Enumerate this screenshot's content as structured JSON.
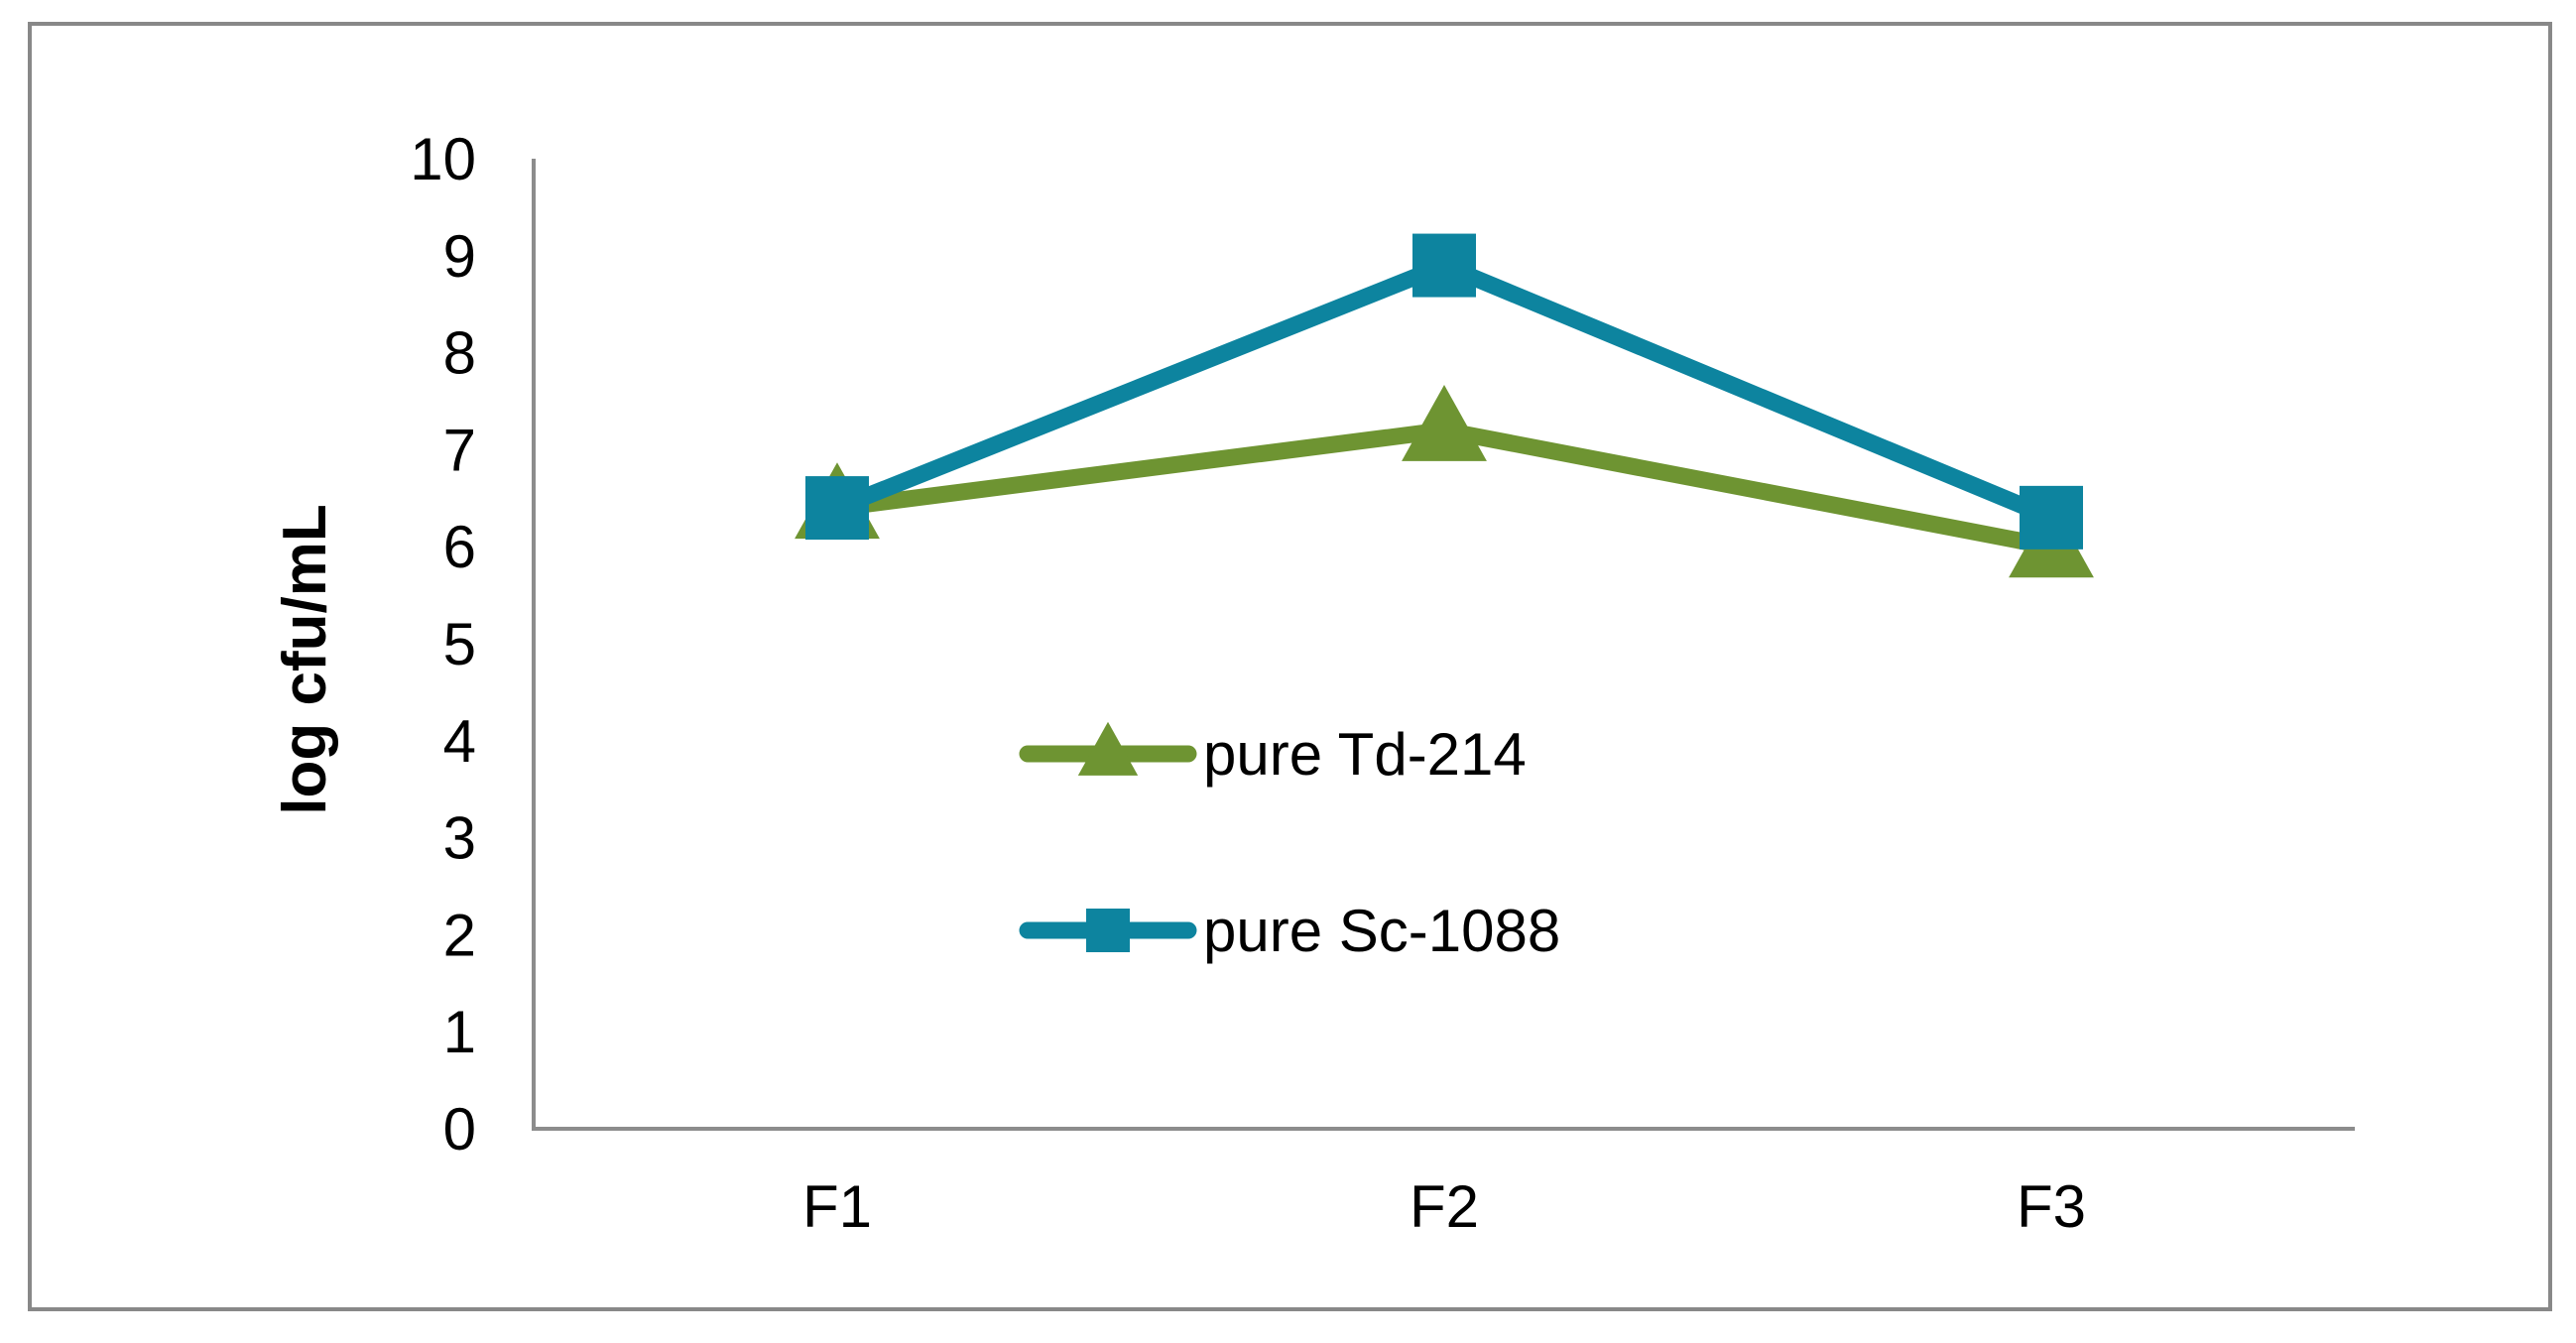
{
  "chart_data": {
    "type": "line",
    "title": "",
    "xlabel": "",
    "ylabel": "log cfu/mL",
    "categories": [
      "F1",
      "F2",
      "F3"
    ],
    "ylim": [
      0,
      10
    ],
    "yticks": [
      "0",
      "1",
      "2",
      "3",
      "4",
      "5",
      "6",
      "7",
      "8",
      "9",
      "10"
    ],
    "grid": false,
    "legend_position": "center",
    "series": [
      {
        "name": "pure Td-214",
        "marker": "triangle",
        "color": "#6E9432",
        "values": [
          6.4,
          7.2,
          6.0
        ]
      },
      {
        "name": "pure Sc-1088",
        "marker": "square",
        "color": "#0D849F",
        "values": [
          6.4,
          8.9,
          6.3
        ]
      }
    ]
  }
}
